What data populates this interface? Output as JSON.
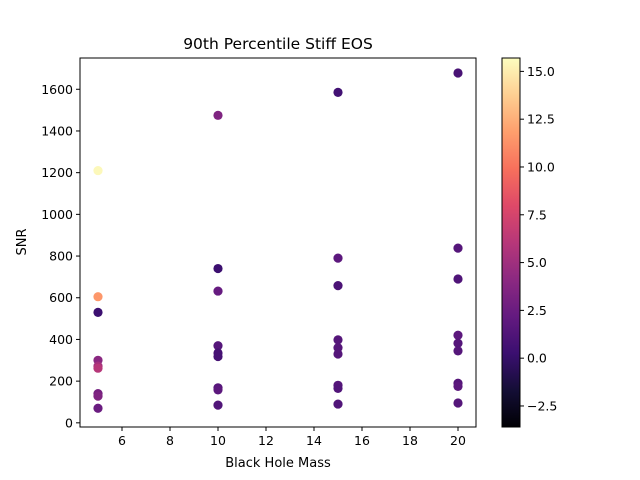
{
  "chart_data": {
    "type": "scatter",
    "title": "90th Percentile Stiff EOS",
    "xlabel": "Black Hole Mass",
    "ylabel": "SNR",
    "xlim": [
      4.25,
      20.75
    ],
    "ylim": [
      -20,
      1750
    ],
    "xticks": [
      6,
      8,
      10,
      12,
      14,
      16,
      18,
      20
    ],
    "yticks": [
      0,
      200,
      400,
      600,
      800,
      1000,
      1200,
      1400,
      1600
    ],
    "grid": false,
    "legend": "none",
    "colorbar": {
      "cmap": "magma",
      "range": [
        -3.6,
        15.7
      ],
      "ticks": [
        -2.5,
        0.0,
        2.5,
        5.0,
        7.5,
        10.0,
        12.5,
        15.0
      ],
      "tick_labels": [
        "−2.5",
        "0.0",
        "2.5",
        "5.0",
        "7.5",
        "10.0",
        "12.5",
        "15.0"
      ]
    },
    "points": [
      {
        "x": 5,
        "y": 1210,
        "c": 15.5
      },
      {
        "x": 5,
        "y": 605,
        "c": 11.5
      },
      {
        "x": 5,
        "y": 530,
        "c": 0.3
      },
      {
        "x": 5,
        "y": 300,
        "c": 4.0
      },
      {
        "x": 5,
        "y": 272,
        "c": 5.2
      },
      {
        "x": 5,
        "y": 262,
        "c": 6.0
      },
      {
        "x": 5,
        "y": 140,
        "c": 3.0
      },
      {
        "x": 5,
        "y": 128,
        "c": 3.5
      },
      {
        "x": 5,
        "y": 70,
        "c": 2.5
      },
      {
        "x": 10,
        "y": 1475,
        "c": 3.5
      },
      {
        "x": 10,
        "y": 740,
        "c": 0.3
      },
      {
        "x": 10,
        "y": 632,
        "c": 2.3
      },
      {
        "x": 10,
        "y": 370,
        "c": 1.5
      },
      {
        "x": 10,
        "y": 335,
        "c": 0.8
      },
      {
        "x": 10,
        "y": 318,
        "c": 0.8
      },
      {
        "x": 10,
        "y": 168,
        "c": 1.5
      },
      {
        "x": 10,
        "y": 158,
        "c": 1.8
      },
      {
        "x": 10,
        "y": 85,
        "c": 1.3
      },
      {
        "x": 15,
        "y": 1585,
        "c": 0.6
      },
      {
        "x": 15,
        "y": 790,
        "c": 1.8
      },
      {
        "x": 15,
        "y": 658,
        "c": 1.0
      },
      {
        "x": 15,
        "y": 398,
        "c": 1.5
      },
      {
        "x": 15,
        "y": 360,
        "c": 1.5
      },
      {
        "x": 15,
        "y": 330,
        "c": 1.5
      },
      {
        "x": 15,
        "y": 180,
        "c": 1.5
      },
      {
        "x": 15,
        "y": 165,
        "c": 1.3
      },
      {
        "x": 15,
        "y": 90,
        "c": 1.3
      },
      {
        "x": 20,
        "y": 1678,
        "c": 0.9
      },
      {
        "x": 20,
        "y": 838,
        "c": 1.5
      },
      {
        "x": 20,
        "y": 690,
        "c": 1.2
      },
      {
        "x": 20,
        "y": 420,
        "c": 1.8
      },
      {
        "x": 20,
        "y": 382,
        "c": 1.5
      },
      {
        "x": 20,
        "y": 345,
        "c": 1.5
      },
      {
        "x": 20,
        "y": 190,
        "c": 1.5
      },
      {
        "x": 20,
        "y": 175,
        "c": 1.8
      },
      {
        "x": 20,
        "y": 95,
        "c": 1.5
      }
    ]
  }
}
